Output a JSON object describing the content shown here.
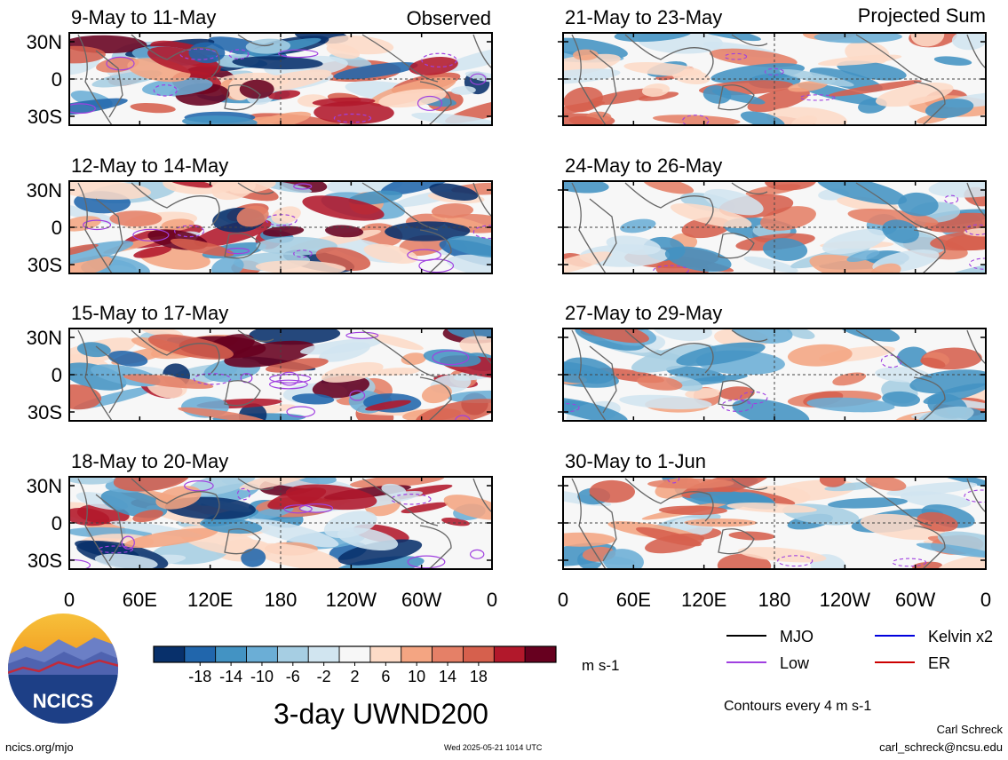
{
  "headers": {
    "left": "Observed",
    "right": "Projected Sum"
  },
  "main_title": "3-day UWND200",
  "units": "m s-1",
  "contours_note": "Contours every 4 m s-1",
  "logo_text": "NCICS",
  "footer": {
    "site": "ncics.org/mjo",
    "timestamp": "Wed 2025-05-21 1014 UTC",
    "author": "Carl Schreck",
    "email": "carl_schreck@ncsu.edu"
  },
  "legend": [
    {
      "label": "MJO",
      "color": "#000000"
    },
    {
      "label": "Kelvin x2",
      "color": "#0000dd"
    },
    {
      "label": "Low",
      "color": "#a040e0"
    },
    {
      "label": "ER",
      "color": "#cc0000"
    }
  ],
  "colorbar": {
    "colors": [
      "#08306b",
      "#2166ac",
      "#4393c3",
      "#6baed6",
      "#a6cee3",
      "#d1e5f0",
      "#f7f7f7",
      "#fddbc7",
      "#f4a582",
      "#e58067",
      "#d6604d",
      "#b2182b",
      "#67001f"
    ],
    "tick_labels": [
      "-18",
      "-14",
      "-10",
      "-6",
      "-2",
      "2",
      "6",
      "10",
      "14",
      "18"
    ]
  },
  "chart_data": {
    "type": "heatmap",
    "variable": "UWND200",
    "x_tick_labels": [
      "0",
      "60E",
      "120E",
      "180",
      "120W",
      "60W",
      "0"
    ],
    "y_tick_labels": [
      "30N",
      "0",
      "30S"
    ],
    "panels": [
      {
        "title": "9-May to 11-May",
        "group": "Observed"
      },
      {
        "title": "21-May to 23-May",
        "group": "Projected Sum"
      },
      {
        "title": "12-May to 14-May",
        "group": "Observed"
      },
      {
        "title": "24-May to 26-May",
        "group": "Projected Sum"
      },
      {
        "title": "15-May to 17-May",
        "group": "Observed"
      },
      {
        "title": "27-May to 29-May",
        "group": "Projected Sum"
      },
      {
        "title": "18-May to 20-May",
        "group": "Observed"
      },
      {
        "title": "30-May to 1-Jun",
        "group": "Projected Sum"
      }
    ]
  }
}
